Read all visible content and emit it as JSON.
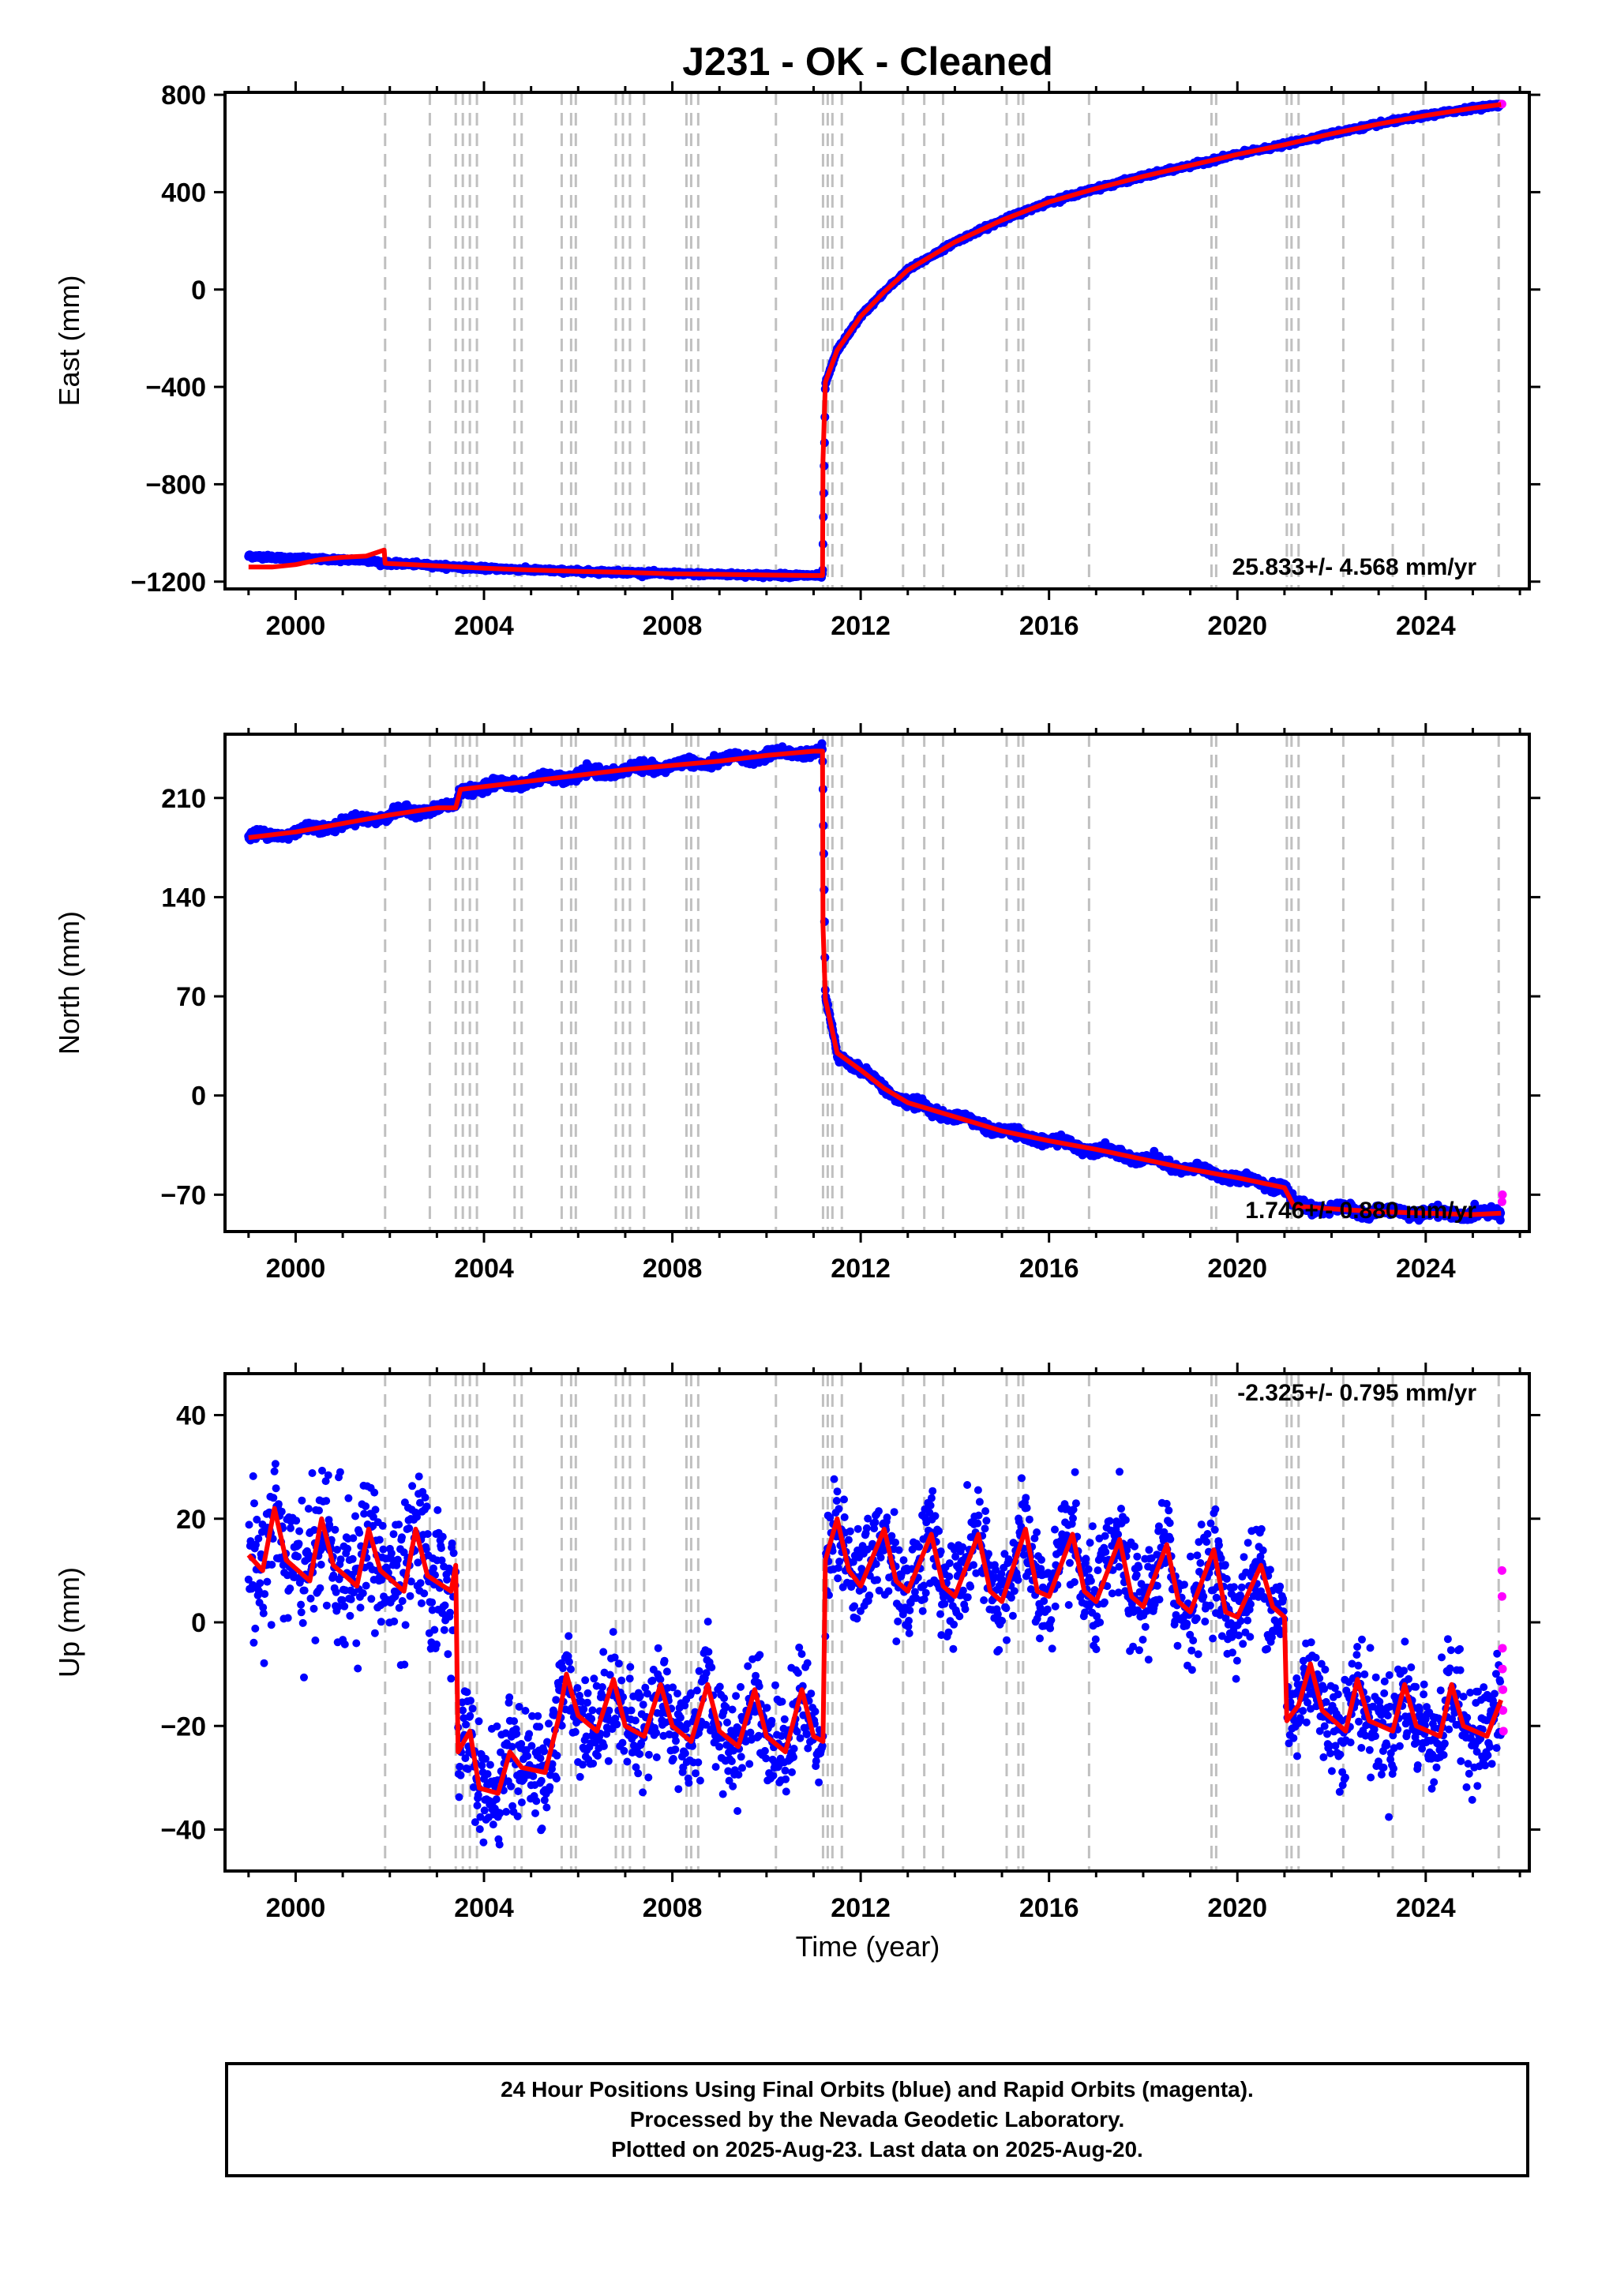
{
  "title": "J231  - OK - Cleaned",
  "x_tick_labels": [
    "2000",
    "2004",
    "2008",
    "2012",
    "2016",
    "2020",
    "2024"
  ],
  "xlabel": "Time (year)",
  "footer": {
    "line1": "24 Hour Positions Using Final Orbits (blue) and Rapid Orbits (magenta).",
    "line2": "Processed by the Nevada Geodetic Laboratory.",
    "line3": "Plotted on 2025-Aug-23. Last data on 2025-Aug-20."
  },
  "colors": {
    "final_orbits": "#0000ff",
    "rapid_orbits": "#ff00ff",
    "model": "#ff0000",
    "event_lines": "#c0c0c0"
  },
  "chart_data": [
    {
      "type": "scatter",
      "panel": "east",
      "ylabel": "East (mm)",
      "rate_text": "25.833+/- 4.568 mm/yr",
      "xlim": [
        1998.5,
        2026.2
      ],
      "ylim": [
        -1230,
        810
      ],
      "yticks": [
        800,
        400,
        0,
        -400,
        -800,
        -1200
      ],
      "ytick_labels": [
        "800",
        "400",
        "0",
        "−400",
        "−800",
        "−1200"
      ],
      "event_lines_years": [
        2001.9,
        2002.85,
        2003.4,
        2003.55,
        2003.7,
        2003.85,
        2004.65,
        2004.8,
        2005.65,
        2005.85,
        2005.95,
        2006.8,
        2006.95,
        2007.1,
        2007.4,
        2008.3,
        2008.4,
        2008.55,
        2010.2,
        2011.2,
        2011.3,
        2011.4,
        2011.6,
        2012.9,
        2013.35,
        2013.75,
        2015.1,
        2015.35,
        2015.45,
        2016.85,
        2019.45,
        2019.55,
        2021.05,
        2021.15,
        2021.3,
        2022.25,
        2023.3,
        2023.95,
        2025.55
      ],
      "series": [
        {
          "name": "Final Orbits",
          "x": [
            1999.0,
            1999.5,
            2000.0,
            2000.5,
            2001.0,
            2001.5,
            2001.9,
            2002.5,
            2003.0,
            2003.5,
            2004.0,
            2005.0,
            2006.0,
            2007.0,
            2008.0,
            2009.0,
            2010.0,
            2011.0,
            2011.19,
            2011.25,
            2011.5,
            2012.0,
            2012.5,
            2013.0,
            2014.0,
            2015.0,
            2016.0,
            2017.0,
            2018.0,
            2019.0,
            2020.0,
            2021.0,
            2022.0,
            2023.0,
            2024.0,
            2025.0,
            2025.6
          ],
          "y": [
            -1095,
            -1100,
            -1105,
            -1108,
            -1110,
            -1112,
            -1125,
            -1128,
            -1135,
            -1140,
            -1145,
            -1152,
            -1158,
            -1162,
            -1168,
            -1170,
            -1173,
            -1175,
            -1175,
            -390,
            -250,
            -110,
            -10,
            80,
            195,
            285,
            360,
            415,
            465,
            510,
            555,
            595,
            640,
            680,
            715,
            745,
            760
          ]
        },
        {
          "name": "Rapid Orbits",
          "x": [
            2025.62
          ],
          "y": [
            762
          ]
        }
      ],
      "model": {
        "x": [
          1999.0,
          1999.5,
          2000.0,
          2000.5,
          2001.0,
          2001.5,
          2001.88,
          2001.9,
          2003.0,
          2004.0,
          2005.0,
          2006.0,
          2007.0,
          2008.0,
          2009.0,
          2010.0,
          2011.0,
          2011.19,
          2011.2,
          2011.25,
          2011.5,
          2012.0,
          2012.5,
          2013.0,
          2014.0,
          2015.0,
          2016.0,
          2017.0,
          2018.0,
          2019.0,
          2020.0,
          2021.0,
          2022.0,
          2023.0,
          2024.0,
          2025.0,
          2025.6
        ],
        "y": [
          -1140,
          -1140,
          -1130,
          -1110,
          -1100,
          -1095,
          -1070,
          -1125,
          -1135,
          -1145,
          -1152,
          -1158,
          -1162,
          -1168,
          -1170,
          -1173,
          -1175,
          -1175,
          -700,
          -380,
          -250,
          -110,
          -10,
          80,
          195,
          285,
          360,
          415,
          465,
          510,
          555,
          595,
          640,
          680,
          715,
          745,
          760
        ]
      }
    },
    {
      "type": "scatter",
      "panel": "north",
      "ylabel": "North (mm)",
      "rate_text": "1.746+/- 0.880 mm/yr",
      "xlim": [
        1998.5,
        2026.2
      ],
      "ylim": [
        -96,
        255
      ],
      "yticks": [
        210,
        140,
        70,
        0,
        -70
      ],
      "ytick_labels": [
        "210",
        "140",
        "70",
        "0",
        "−70"
      ],
      "event_lines_years": [
        2001.9,
        2002.85,
        2003.4,
        2003.55,
        2003.7,
        2003.85,
        2004.65,
        2004.8,
        2005.65,
        2005.85,
        2005.95,
        2006.8,
        2006.95,
        2007.1,
        2007.4,
        2008.3,
        2008.4,
        2008.55,
        2010.2,
        2011.2,
        2011.3,
        2011.4,
        2011.6,
        2012.9,
        2013.35,
        2013.75,
        2015.1,
        2015.35,
        2015.45,
        2016.85,
        2019.45,
        2019.55,
        2021.05,
        2021.15,
        2021.3,
        2022.25,
        2023.3,
        2023.95,
        2025.55
      ],
      "series": [
        {
          "name": "Final Orbits",
          "x": [
            1999.0,
            2000.0,
            2001.0,
            2002.0,
            2003.0,
            2003.4,
            2003.5,
            2004.0,
            2005.0,
            2006.0,
            2007.0,
            2008.0,
            2009.0,
            2010.0,
            2011.0,
            2011.19,
            2011.25,
            2011.5,
            2012.0,
            2012.5,
            2013.0,
            2014.0,
            2015.0,
            2016.0,
            2017.0,
            2018.0,
            2019.0,
            2020.0,
            2021.0,
            2021.2,
            2022.0,
            2023.0,
            2024.0,
            2025.0,
            2025.6
          ],
          "y": [
            182,
            186,
            192,
            198,
            203,
            203,
            216,
            218,
            222,
            226,
            230,
            233,
            236,
            240,
            243,
            243,
            68,
            30,
            18,
            5,
            -5,
            -15,
            -25,
            -32,
            -38,
            -45,
            -52,
            -58,
            -65,
            -78,
            -80,
            -82,
            -83,
            -84,
            -83
          ]
        },
        {
          "name": "Rapid Orbits",
          "x": [
            2025.62,
            2025.63
          ],
          "y": [
            -75,
            -70
          ]
        }
      ],
      "model": {
        "x": [
          1999.0,
          2000.0,
          2001.0,
          2002.0,
          2003.0,
          2003.4,
          2003.5,
          2004.0,
          2005.0,
          2006.0,
          2007.0,
          2008.0,
          2009.0,
          2010.0,
          2011.0,
          2011.19,
          2011.2,
          2011.25,
          2011.5,
          2012.0,
          2012.5,
          2013.0,
          2014.0,
          2015.0,
          2016.0,
          2017.0,
          2018.0,
          2019.0,
          2020.0,
          2021.0,
          2021.2,
          2022.0,
          2023.0,
          2024.0,
          2025.0,
          2025.6
        ],
        "y": [
          182,
          186,
          192,
          198,
          203,
          203,
          216,
          218,
          222,
          226,
          230,
          233,
          236,
          240,
          243,
          243,
          120,
          68,
          30,
          18,
          5,
          -5,
          -15,
          -25,
          -32,
          -38,
          -45,
          -52,
          -58,
          -65,
          -78,
          -80,
          -82,
          -83,
          -84,
          -83
        ]
      }
    },
    {
      "type": "scatter",
      "panel": "up",
      "ylabel": "Up (mm)",
      "rate_text": "-2.325+/- 0.795 mm/yr",
      "xlim": [
        1998.5,
        2026.2
      ],
      "ylim": [
        -48,
        48
      ],
      "yticks": [
        40,
        20,
        0,
        -20,
        -40
      ],
      "ytick_labels": [
        "40",
        "20",
        "0",
        "−20",
        "−40"
      ],
      "event_lines_years": [
        2001.9,
        2002.85,
        2003.4,
        2003.55,
        2003.7,
        2003.85,
        2004.65,
        2004.8,
        2005.65,
        2005.85,
        2005.95,
        2006.8,
        2006.95,
        2007.1,
        2007.4,
        2008.3,
        2008.4,
        2008.55,
        2010.2,
        2011.2,
        2011.3,
        2011.4,
        2011.6,
        2012.9,
        2013.35,
        2013.75,
        2015.1,
        2015.35,
        2015.45,
        2016.85,
        2019.45,
        2019.55,
        2021.05,
        2021.15,
        2021.3,
        2022.25,
        2023.3,
        2023.95,
        2025.55
      ],
      "segments": [
        {
          "x_start": 1999.0,
          "x_end": 2003.4,
          "level": 13,
          "amplitude": 6,
          "scatter": 7
        },
        {
          "x_start": 2003.45,
          "x_end": 2005.6,
          "level": -27,
          "amplitude": 3,
          "scatter": 5
        },
        {
          "x_start": 2005.6,
          "x_end": 2011.2,
          "level": -19,
          "amplitude": 5,
          "scatter": 5
        },
        {
          "x_start": 2011.25,
          "x_end": 2020.75,
          "level": 9,
          "amplitude": 6,
          "scatter": 5
        },
        {
          "x_start": 2020.75,
          "x_end": 2021.0,
          "level": 3,
          "amplitude": 1,
          "scatter": 4
        },
        {
          "x_start": 2021.05,
          "x_end": 2025.6,
          "level": -17,
          "amplitude": 5,
          "scatter": 5
        }
      ],
      "series": [
        {
          "name": "Final Orbits",
          "note_values": "scatter around seasonal model"
        },
        {
          "name": "Rapid Orbits",
          "x": [
            2025.62,
            2025.62,
            2025.63,
            2025.63,
            2025.64,
            2025.64,
            2025.65
          ],
          "y": [
            10,
            5,
            -5,
            -9,
            -13,
            -17,
            -21
          ]
        }
      ],
      "model": {
        "x": [
          1999.0,
          1999.3,
          1999.55,
          1999.8,
          2000.3,
          2000.55,
          2000.8,
          2001.3,
          2001.55,
          2001.8,
          2002.3,
          2002.55,
          2002.8,
          2003.3,
          2003.4,
          2003.45,
          2003.7,
          2003.9,
          2004.3,
          2004.55,
          2004.8,
          2005.3,
          2005.6,
          2005.75,
          2006.0,
          2006.4,
          2006.75,
          2007.0,
          2007.4,
          2007.75,
          2008.0,
          2008.4,
          2008.75,
          2009.0,
          2009.4,
          2009.75,
          2010.0,
          2010.4,
          2010.75,
          2011.0,
          2011.2,
          2011.25,
          2011.5,
          2011.75,
          2012.0,
          2012.5,
          2012.75,
          2013.0,
          2013.5,
          2013.75,
          2014.0,
          2014.5,
          2014.75,
          2015.0,
          2015.5,
          2015.75,
          2016.0,
          2016.5,
          2016.75,
          2017.0,
          2017.5,
          2017.75,
          2018.0,
          2018.5,
          2018.75,
          2019.0,
          2019.5,
          2019.75,
          2020.0,
          2020.5,
          2020.75,
          2021.0,
          2021.05,
          2021.3,
          2021.55,
          2021.8,
          2022.3,
          2022.55,
          2022.8,
          2023.3,
          2023.55,
          2023.8,
          2024.3,
          2024.55,
          2024.8,
          2025.3,
          2025.6
        ],
        "y": [
          13,
          10,
          22,
          12,
          8,
          20,
          11,
          7,
          18,
          10,
          6,
          18,
          9,
          6,
          11,
          -25,
          -21,
          -32,
          -33,
          -25,
          -28,
          -29,
          -18,
          -10,
          -18,
          -21,
          -11,
          -20,
          -22,
          -12,
          -20,
          -23,
          -12,
          -21,
          -24,
          -13,
          -22,
          -25,
          -13,
          -22,
          -23,
          12,
          20,
          10,
          7,
          18,
          8,
          6,
          17,
          7,
          5,
          17,
          6,
          4,
          18,
          6,
          5,
          17,
          6,
          4,
          16,
          5,
          3,
          15,
          4,
          2,
          14,
          2,
          1,
          11,
          3,
          1,
          -19,
          -16,
          -8,
          -17,
          -21,
          -11,
          -19,
          -21,
          -12,
          -20,
          -22,
          -12,
          -20,
          -22,
          -15
        ]
      }
    }
  ]
}
